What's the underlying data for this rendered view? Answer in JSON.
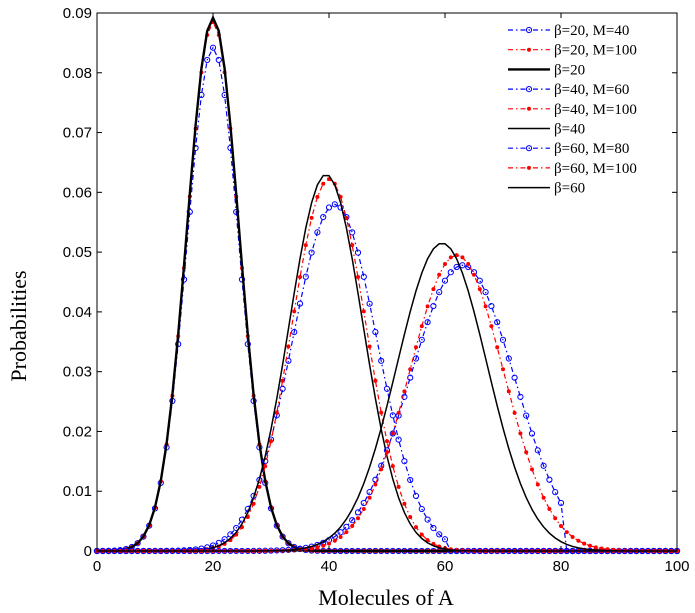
{
  "chart_data": {
    "type": "line",
    "title": "",
    "xlabel": "Molecules of A",
    "ylabel": "Probabilities",
    "xlim": [
      0,
      100
    ],
    "ylim": [
      0,
      0.09
    ],
    "xticks": [
      0,
      20,
      40,
      60,
      80,
      100
    ],
    "yticks": [
      0,
      0.01,
      0.02,
      0.03,
      0.04,
      0.05,
      0.06,
      0.07,
      0.08,
      0.09
    ],
    "xtick_labels": [
      "0",
      "20",
      "40",
      "60",
      "80",
      "100"
    ],
    "ytick_labels": [
      "0",
      "0.01",
      "0.02",
      "0.03",
      "0.04",
      "0.05",
      "0.06",
      "0.07",
      "0.08",
      "0.09"
    ],
    "grid": false,
    "legend_position": "top-right",
    "series": [
      {
        "name": "β=20, M=40",
        "color": "#0000ff",
        "style": "dash-dot",
        "marker": "open-circle",
        "kind": "truncated",
        "mean": 20,
        "sd": 4.5,
        "peak": 0.0842,
        "cutoff": 40
      },
      {
        "name": "β=20, M=100",
        "color": "#ff0000",
        "style": "dash-dot",
        "marker": "filled-dot",
        "kind": "truncated",
        "mean": 20,
        "sd": 4.47,
        "peak": 0.0885,
        "cutoff": 100
      },
      {
        "name": "β=20",
        "color": "#000000",
        "style": "solid-thick",
        "marker": "none",
        "kind": "gaussian",
        "mean": 20,
        "sd": 4.47,
        "peak": 0.0892
      },
      {
        "name": "β=40, M=60",
        "color": "#0000ff",
        "style": "dash-dot",
        "marker": "open-circle",
        "kind": "truncated",
        "mean": 41,
        "sd": 7.3,
        "peak": 0.058,
        "cutoff": 60
      },
      {
        "name": "β=40, M=100",
        "color": "#ff0000",
        "style": "dash-dot",
        "marker": "filled-dot",
        "kind": "truncated",
        "mean": 40,
        "sd": 6.4,
        "peak": 0.0622,
        "cutoff": 100
      },
      {
        "name": "β=40",
        "color": "#000000",
        "style": "solid",
        "marker": "none",
        "kind": "gaussian",
        "mean": 39.5,
        "sd": 6.32,
        "peak": 0.063
      },
      {
        "name": "β=60, M=80",
        "color": "#0000ff",
        "style": "dash-dot",
        "marker": "open-circle",
        "kind": "truncated",
        "mean": 63,
        "sd": 9.0,
        "peak": 0.0478,
        "cutoff": 80
      },
      {
        "name": "β=60, M=100",
        "color": "#ff0000",
        "style": "dash-dot",
        "marker": "filled-dot",
        "kind": "truncated",
        "mean": 62,
        "sd": 8.1,
        "peak": 0.0495,
        "cutoff": 100
      },
      {
        "name": "β=60",
        "color": "#000000",
        "style": "solid",
        "marker": "none",
        "kind": "gaussian",
        "mean": 59.5,
        "sd": 7.75,
        "peak": 0.0515
      }
    ]
  }
}
